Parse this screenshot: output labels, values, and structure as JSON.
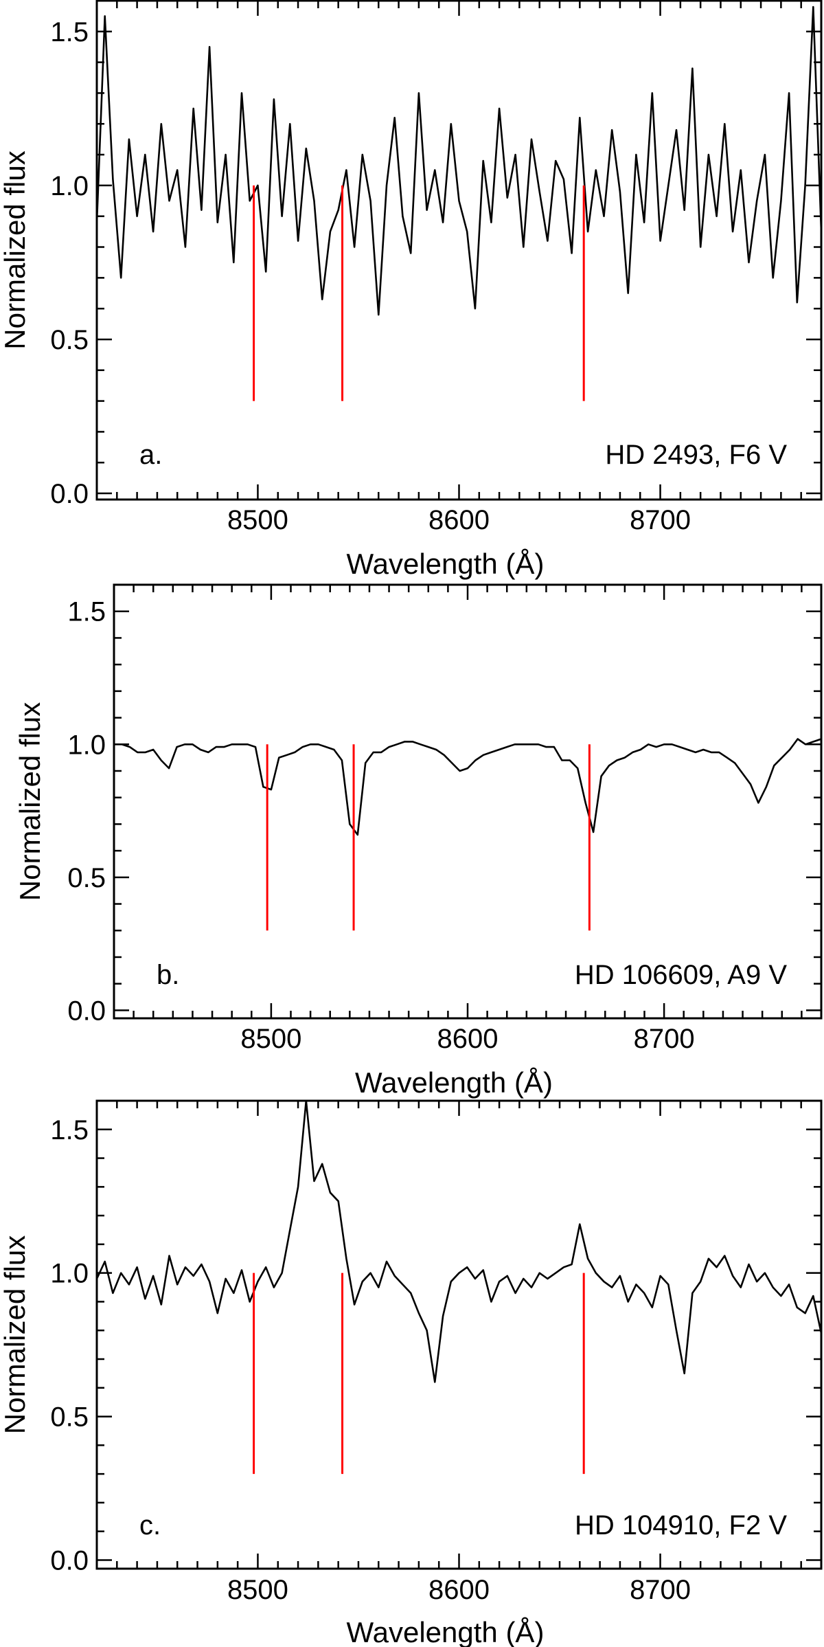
{
  "chart_data": [
    {
      "type": "line",
      "panel_label": "a.",
      "star_label": "HD 2493, F6 V",
      "xlabel": "Wavelength (Å)",
      "ylabel": "Normalized flux",
      "xlim": [
        8420,
        8780
      ],
      "ylim": [
        -0.02,
        1.6
      ],
      "xticks": [
        8500,
        8600,
        8700
      ],
      "xtick_labels": [
        "8500",
        "8600",
        "8700"
      ],
      "yticks": [
        0.0,
        0.5,
        1.0,
        1.5
      ],
      "ytick_labels": [
        "0.0",
        "0.5",
        "1.0",
        "1.5"
      ],
      "grid": false,
      "line_markers": {
        "x": [
          8498,
          8542,
          8662
        ],
        "y_range": [
          0.3,
          1.0
        ],
        "color": "#ff0000"
      },
      "series": [
        {
          "name": "HD 2493",
          "color": "#000000",
          "x_start": 8420,
          "x_step": 4,
          "y": [
            0.88,
            1.55,
            1.02,
            0.7,
            1.15,
            0.9,
            1.1,
            0.85,
            1.2,
            0.95,
            1.05,
            0.8,
            1.25,
            0.92,
            1.45,
            0.88,
            1.1,
            0.75,
            1.3,
            0.95,
            1.0,
            0.72,
            1.28,
            0.9,
            1.2,
            0.82,
            1.12,
            0.95,
            0.63,
            0.85,
            0.92,
            1.05,
            0.8,
            1.1,
            0.95,
            0.58,
            1.0,
            1.22,
            0.9,
            0.78,
            1.3,
            0.92,
            1.05,
            0.88,
            1.2,
            0.95,
            0.85,
            0.6,
            1.08,
            0.88,
            1.25,
            0.96,
            1.1,
            0.8,
            1.15,
            0.98,
            0.82,
            1.08,
            1.02,
            0.78,
            1.22,
            0.85,
            1.05,
            0.9,
            1.18,
            0.98,
            0.65,
            1.1,
            0.88,
            1.3,
            0.82,
            1.0,
            1.18,
            0.92,
            1.38,
            0.8,
            1.1,
            0.9,
            1.2,
            0.85,
            1.05,
            0.75,
            0.95,
            1.1,
            0.7,
            0.95,
            1.3,
            0.62,
            1.0,
            1.58,
            0.85
          ]
        }
      ]
    },
    {
      "type": "line",
      "panel_label": "b.",
      "star_label": "HD 106609, A9 V",
      "xlabel": "Wavelength (Å)",
      "ylabel": "Normalized flux",
      "xlim": [
        8420,
        8780
      ],
      "ylim": [
        -0.03,
        1.6
      ],
      "xticks": [
        8500,
        8600,
        8700
      ],
      "xtick_labels": [
        "8500",
        "8600",
        "8700"
      ],
      "yticks": [
        0.0,
        0.5,
        1.0,
        1.5
      ],
      "ytick_labels": [
        "0.0",
        "0.5",
        "1.0",
        "1.5"
      ],
      "grid": false,
      "line_markers": {
        "x": [
          8498,
          8542,
          8662
        ],
        "y_range": [
          0.3,
          1.0
        ],
        "color": "#ff0000"
      },
      "series": [
        {
          "name": "HD 106609",
          "color": "#000000",
          "x_start": 8420,
          "x_step": 4,
          "y": [
            1.0,
            1.0,
            0.99,
            0.97,
            0.97,
            0.98,
            0.94,
            0.91,
            0.99,
            1.0,
            1.0,
            0.98,
            0.97,
            0.99,
            0.99,
            1.0,
            1.0,
            1.0,
            0.99,
            0.84,
            0.83,
            0.95,
            0.96,
            0.97,
            0.99,
            1.0,
            1.0,
            0.99,
            0.98,
            0.94,
            0.7,
            0.66,
            0.93,
            0.97,
            0.97,
            0.99,
            1.0,
            1.01,
            1.01,
            1.0,
            0.99,
            0.98,
            0.96,
            0.93,
            0.9,
            0.91,
            0.94,
            0.96,
            0.97,
            0.98,
            0.99,
            1.0,
            1.0,
            1.0,
            1.0,
            0.99,
            0.99,
            0.94,
            0.94,
            0.91,
            0.78,
            0.67,
            0.88,
            0.92,
            0.94,
            0.95,
            0.97,
            0.98,
            1.0,
            0.99,
            1.0,
            1.0,
            0.99,
            0.98,
            0.97,
            0.98,
            0.97,
            0.97,
            0.95,
            0.93,
            0.89,
            0.85,
            0.78,
            0.84,
            0.92,
            0.95,
            0.98,
            1.02,
            1.0,
            1.01,
            1.02
          ]
        }
      ]
    },
    {
      "type": "line",
      "panel_label": "c.",
      "star_label": "HD 104910, F2 V",
      "xlabel": "Wavelength (Å)",
      "ylabel": "Normalized flux",
      "xlim": [
        8420,
        8780
      ],
      "ylim": [
        -0.03,
        1.6
      ],
      "xticks": [
        8500,
        8600,
        8700
      ],
      "xtick_labels": [
        "8500",
        "8600",
        "8700"
      ],
      "yticks": [
        0.0,
        0.5,
        1.0,
        1.5
      ],
      "ytick_labels": [
        "0.0",
        "0.5",
        "1.0",
        "1.5"
      ],
      "grid": false,
      "line_markers": {
        "x": [
          8498,
          8542,
          8662
        ],
        "y_range": [
          0.3,
          1.0
        ],
        "color": "#ff0000"
      },
      "series": [
        {
          "name": "HD 104910",
          "color": "#000000",
          "x_start": 8420,
          "x_step": 4,
          "y": [
            0.98,
            1.04,
            0.93,
            1.0,
            0.96,
            1.02,
            0.91,
            0.99,
            0.89,
            1.06,
            0.96,
            1.02,
            0.99,
            1.03,
            0.97,
            0.86,
            0.98,
            0.93,
            1.01,
            0.9,
            0.97,
            1.02,
            0.95,
            1.0,
            1.15,
            1.3,
            1.6,
            1.32,
            1.38,
            1.28,
            1.25,
            1.05,
            0.89,
            0.97,
            1.0,
            0.95,
            1.04,
            0.99,
            0.96,
            0.93,
            0.86,
            0.8,
            0.62,
            0.85,
            0.97,
            1.0,
            1.02,
            0.98,
            1.01,
            0.9,
            0.97,
            0.99,
            0.93,
            0.98,
            0.95,
            1.0,
            0.98,
            1.0,
            1.02,
            1.03,
            1.17,
            1.05,
            1.0,
            0.97,
            0.95,
            0.99,
            0.9,
            0.96,
            0.93,
            0.88,
            0.99,
            0.96,
            0.8,
            0.65,
            0.93,
            0.97,
            1.05,
            1.02,
            1.06,
            0.99,
            0.95,
            1.03,
            0.97,
            1.0,
            0.95,
            0.92,
            0.96,
            0.88,
            0.86,
            0.92,
            0.79,
            0.84,
            0.9,
            0.86,
            0.82,
            0.88,
            0.99,
            1.0,
            1.04,
            0.98,
            1.03
          ]
        }
      ]
    }
  ]
}
